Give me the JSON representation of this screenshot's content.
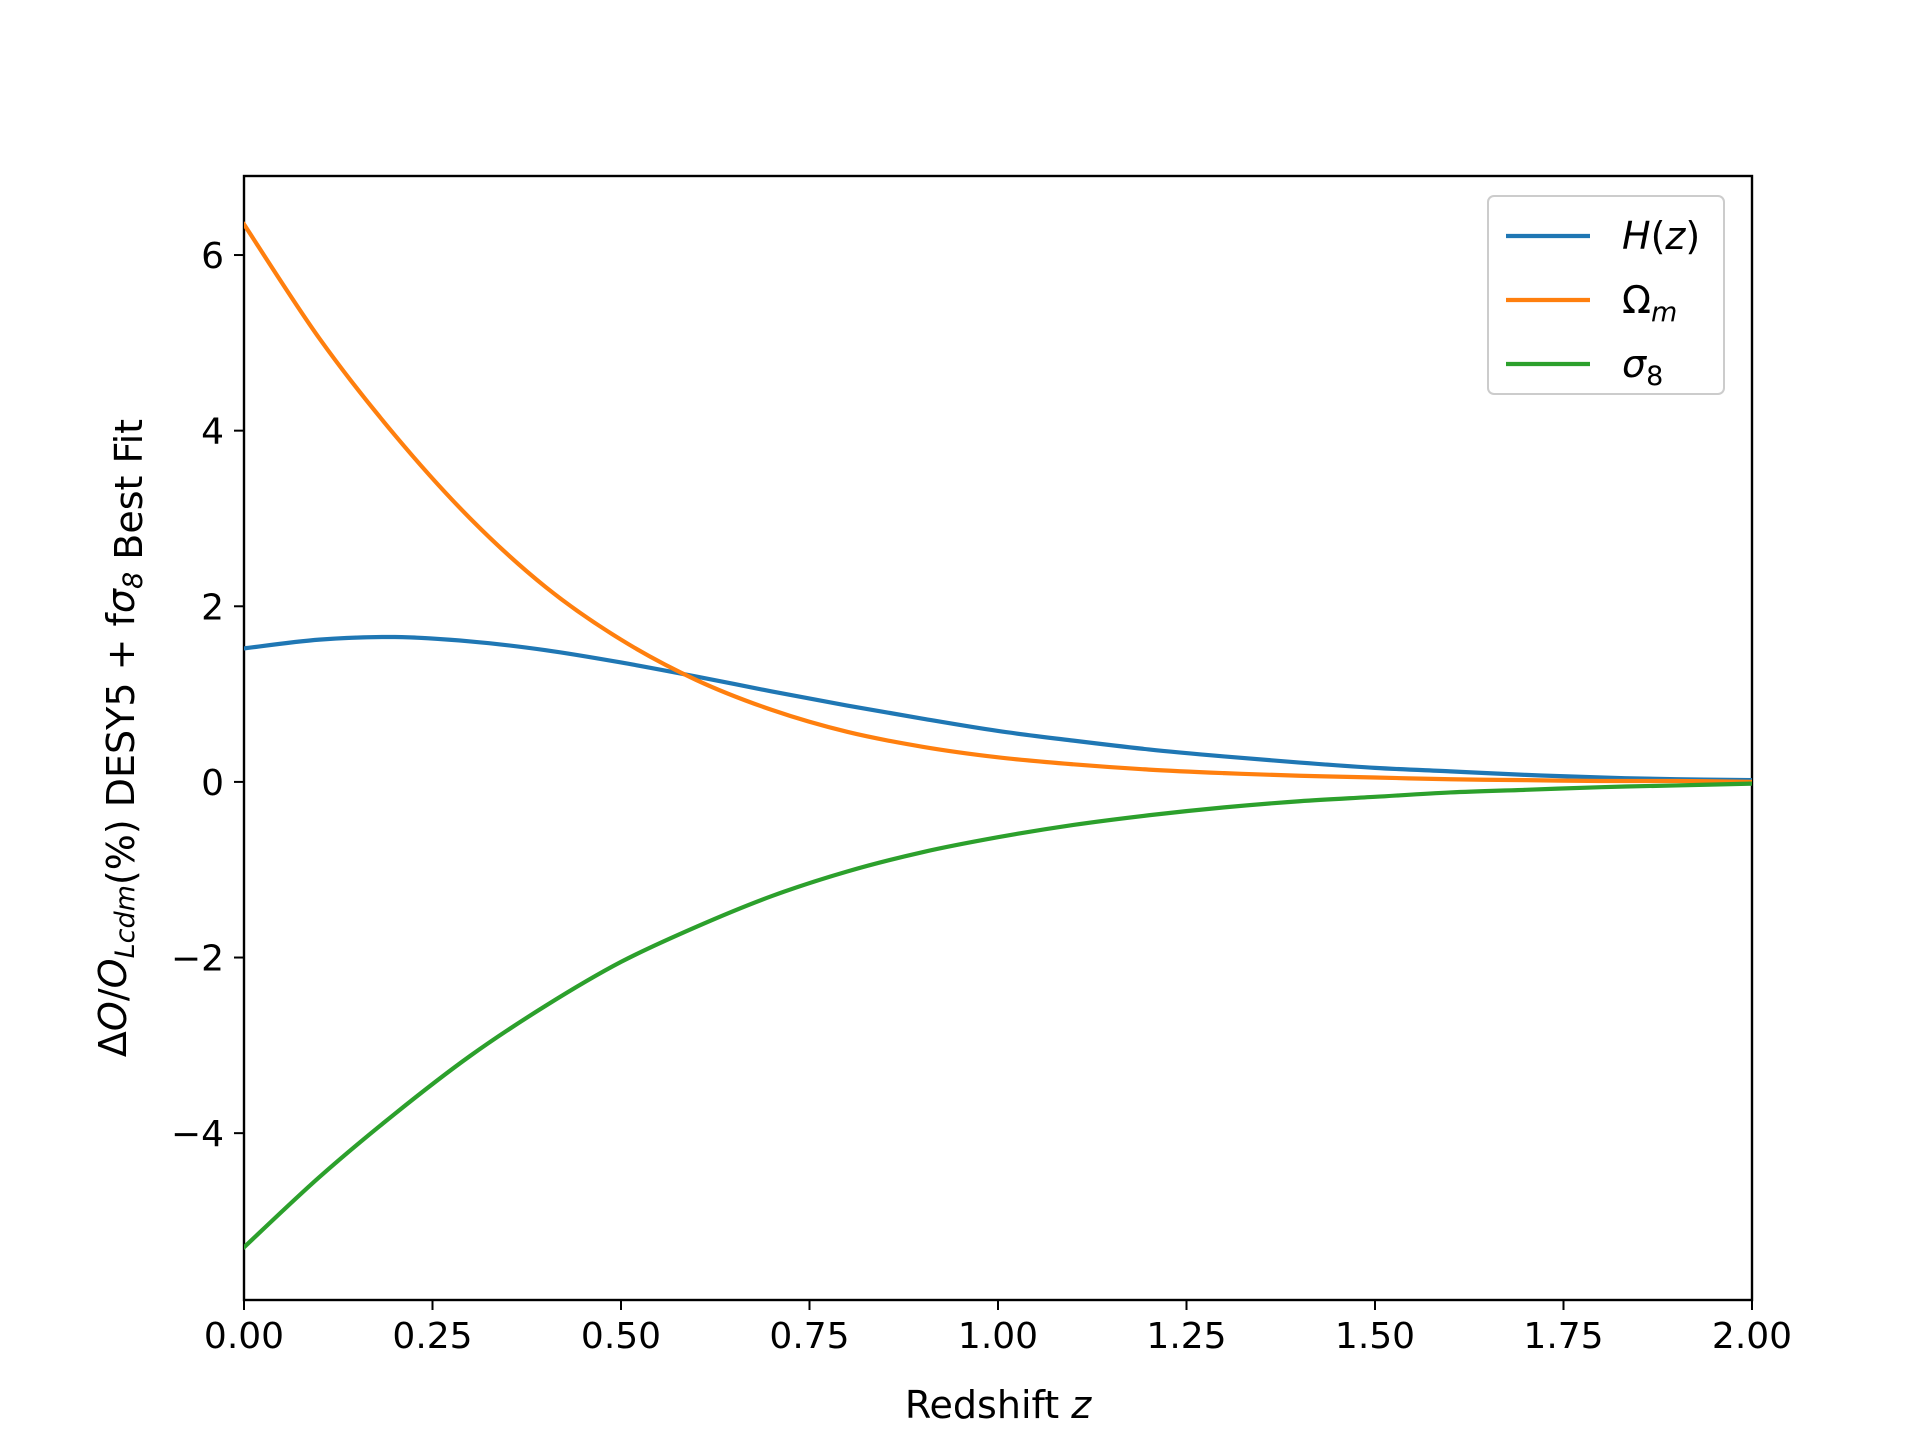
{
  "chart_data": {
    "type": "line",
    "xlabel": "Redshift",
    "xlabel_var": "z",
    "ylabel": "ΔO/O_Lcdm(%) DESY5 + fσ8 Best Fit",
    "xlim": [
      0.0,
      2.0
    ],
    "ylim": [
      -5.9,
      6.9
    ],
    "x_ticks": [
      "0.00",
      "0.25",
      "0.50",
      "0.75",
      "1.00",
      "1.25",
      "1.50",
      "1.75",
      "2.00"
    ],
    "y_ticks": [
      "−4",
      "−2",
      "0",
      "2",
      "4",
      "6"
    ],
    "legend_position": "top-right",
    "grid": false,
    "x": [
      0.0,
      0.1,
      0.2,
      0.3,
      0.4,
      0.5,
      0.6,
      0.7,
      0.8,
      0.9,
      1.0,
      1.1,
      1.2,
      1.3,
      1.4,
      1.5,
      1.6,
      1.7,
      1.8,
      1.9,
      2.0
    ],
    "series": [
      {
        "name": "H(z)",
        "color": "#1f77b4",
        "values": [
          1.52,
          1.62,
          1.65,
          1.6,
          1.5,
          1.36,
          1.2,
          1.03,
          0.87,
          0.72,
          0.58,
          0.47,
          0.37,
          0.29,
          0.22,
          0.16,
          0.12,
          0.08,
          0.05,
          0.03,
          0.02
        ]
      },
      {
        "name": "Ω_m",
        "color": "#ff7f0e",
        "values": [
          6.35,
          5.05,
          3.95,
          3.0,
          2.22,
          1.62,
          1.16,
          0.82,
          0.57,
          0.4,
          0.28,
          0.2,
          0.14,
          0.1,
          0.07,
          0.05,
          0.03,
          0.02,
          0.01,
          0.01,
          0.0
        ]
      },
      {
        "name": "σ_8",
        "color": "#2ca02c",
        "values": [
          -5.3,
          -4.5,
          -3.78,
          -3.12,
          -2.55,
          -2.05,
          -1.65,
          -1.3,
          -1.02,
          -0.8,
          -0.63,
          -0.49,
          -0.38,
          -0.29,
          -0.22,
          -0.17,
          -0.12,
          -0.09,
          -0.06,
          -0.04,
          -0.02
        ]
      }
    ]
  }
}
